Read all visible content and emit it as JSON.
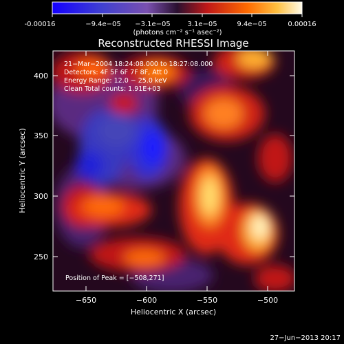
{
  "colorbar": {
    "tick_labels": [
      "-0.00016",
      "−9.4e−05",
      "−3.1e−05",
      "3.1e−05",
      "9.4e−05",
      "0.00016"
    ],
    "unit_label": "(photons cm⁻² s⁻¹ asec⁻²)"
  },
  "plot": {
    "title": "Reconstructed RHESSI Image",
    "xlabel": "Heliocentric X (arcsec)",
    "ylabel": "Heliocentric Y (arcsec)",
    "x_ticks": [
      "−650",
      "−600",
      "−550",
      "−500"
    ],
    "y_ticks": [
      "250",
      "300",
      "350",
      "400"
    ],
    "info_lines": [
      "21−Mar−2004 18:24:08.000 to 18:27:08.000",
      "Detectors: 4F 5F 6F 7F 8F, Att 0",
      "Energy Range: 12.0 − 25.0 keV",
      "Clean    Total counts: 1.91E+03"
    ],
    "peak_label": "Position of Peak = [−508,271]"
  },
  "footer": {
    "date": "27−Jun−2013 20:17"
  }
}
